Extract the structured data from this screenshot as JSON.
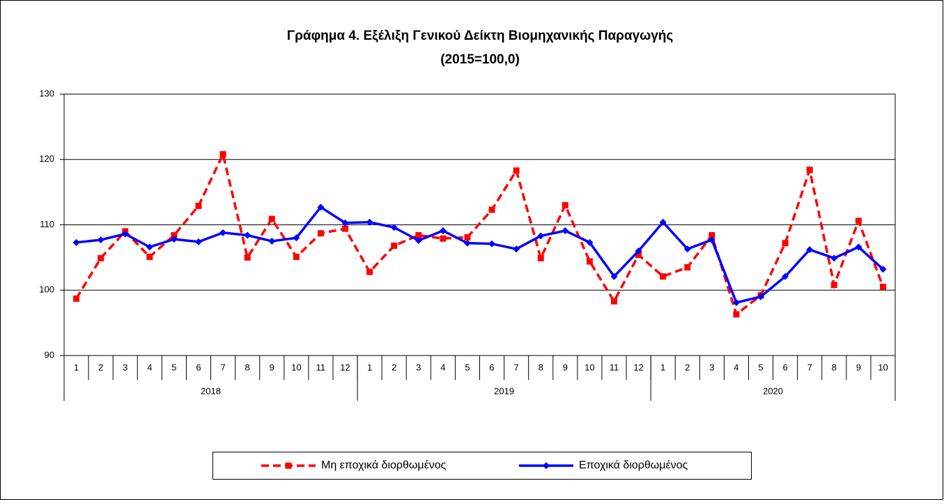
{
  "chart_data": {
    "type": "line",
    "title": "Γράφημα 4. Εξέλιξη Γενικού Δείκτη Βιομηχανικής Παραγωγής",
    "subtitle": "(2015=100,0)",
    "categories": [
      "1",
      "2",
      "3",
      "4",
      "5",
      "6",
      "7",
      "8",
      "9",
      "10",
      "11",
      "12",
      "1",
      "2",
      "3",
      "4",
      "5",
      "6",
      "7",
      "8",
      "9",
      "10",
      "11",
      "12",
      "1",
      "2",
      "3",
      "4",
      "5",
      "6",
      "7",
      "8",
      "9",
      "10"
    ],
    "groups": [
      {
        "name": "2018",
        "count": 12
      },
      {
        "name": "2019",
        "count": 12
      },
      {
        "name": "2020",
        "count": 10
      }
    ],
    "series": [
      {
        "name": "Μη εποχικά διορθωμένος",
        "color": "#ff0000",
        "dashed": true,
        "marker": "square",
        "values": [
          98.7,
          104.9,
          109.0,
          105.1,
          108.4,
          112.9,
          120.8,
          105.0,
          110.9,
          105.1,
          108.7,
          109.4,
          102.8,
          106.8,
          108.4,
          107.9,
          108.1,
          112.3,
          118.3,
          104.9,
          113.0,
          104.4,
          98.3,
          105.4,
          102.1,
          103.5,
          108.4,
          96.3,
          99.2,
          107.2,
          118.4,
          100.8,
          110.6,
          100.5
        ]
      },
      {
        "name": "Εποχικά διορθωμένος",
        "color": "#0000ff",
        "dashed": false,
        "marker": "diamond",
        "values": [
          107.3,
          107.7,
          108.6,
          106.6,
          107.8,
          107.4,
          108.8,
          108.4,
          107.5,
          108.0,
          112.7,
          110.3,
          110.4,
          109.6,
          107.6,
          109.1,
          107.2,
          107.1,
          106.3,
          108.3,
          109.1,
          107.3,
          102.1,
          106.0,
          110.4,
          106.3,
          107.7,
          98.1,
          99.0,
          102.1,
          106.2,
          104.9,
          106.6,
          103.2
        ]
      }
    ],
    "ylim": [
      90,
      130
    ],
    "yticks": [
      90,
      100,
      110,
      120,
      130
    ],
    "grid": true,
    "legend": "bottom"
  }
}
